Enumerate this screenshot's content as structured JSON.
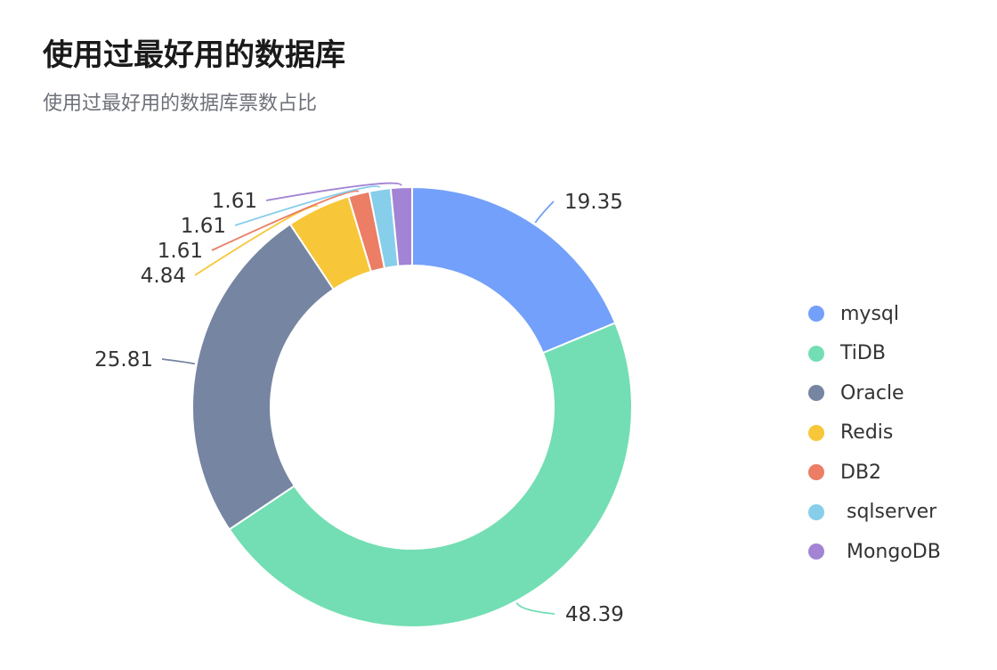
{
  "chart_data": {
    "type": "pie",
    "title": "使用过最好用的数据库",
    "subtitle": "使用过最好用的数据库票数占比",
    "legend_position": "right",
    "series": [
      {
        "name": "mysql",
        "value": 19.35,
        "color": "#73a0fa"
      },
      {
        "name": "TiDB",
        "value": 48.39,
        "color": "#73deb3"
      },
      {
        "name": "Oracle",
        "value": 25.81,
        "color": "#7585a2"
      },
      {
        "name": "Redis",
        "value": 4.84,
        "color": "#f7c739"
      },
      {
        "name": "DB2",
        "value": 1.61,
        "color": "#eb7e65"
      },
      {
        "name": " sqlserver",
        "value": 1.61,
        "color": "#87ceeb"
      },
      {
        "name": " MongoDB",
        "value": 1.61,
        "color": "#a283d4"
      }
    ]
  }
}
